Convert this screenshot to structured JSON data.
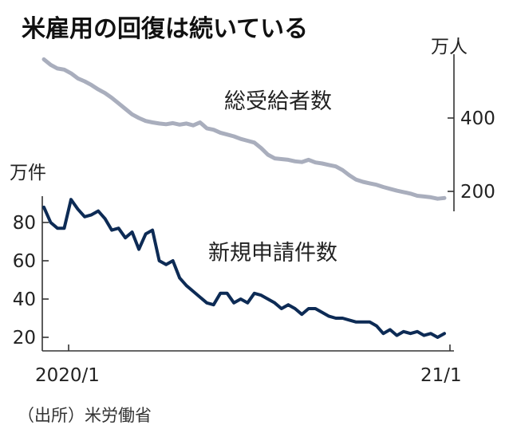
{
  "chart_data": {
    "type": "line",
    "title": "米雇用の回復は続いている",
    "source": "（出所）米労働省",
    "x_start_label": "2020/1",
    "x_end_label": "21/1",
    "series": [
      {
        "name": "総受給者数",
        "axis": "right",
        "unit": "万人",
        "color": "#a9aebd",
        "values": [
          560,
          545,
          535,
          532,
          522,
          508,
          500,
          490,
          478,
          468,
          455,
          440,
          425,
          410,
          400,
          392,
          388,
          385,
          383,
          386,
          382,
          385,
          380,
          388,
          372,
          368,
          360,
          355,
          350,
          343,
          338,
          333,
          318,
          300,
          290,
          288,
          286,
          282,
          280,
          286,
          279,
          276,
          272,
          268,
          258,
          244,
          232,
          226,
          222,
          218,
          212,
          207,
          202,
          198,
          194,
          188,
          186,
          184,
          180,
          182
        ]
      },
      {
        "name": "新規申請件数",
        "axis": "left",
        "unit": "万件",
        "color": "#0d2b55",
        "values": [
          88,
          80,
          77,
          77,
          92,
          87,
          83,
          84,
          86,
          82,
          76,
          77,
          72,
          75,
          66,
          74,
          76,
          60,
          58,
          60,
          51,
          47,
          44,
          41,
          38,
          37,
          43,
          43,
          38,
          40,
          38,
          43,
          42,
          40,
          38,
          35,
          37,
          35,
          32,
          35,
          35,
          33,
          31,
          30,
          30,
          29,
          28,
          28,
          28,
          26,
          22,
          24,
          21,
          23,
          22,
          23,
          21,
          22,
          20,
          22
        ]
      }
    ],
    "left_axis": {
      "unit": "万件",
      "ticks": [
        20,
        40,
        60,
        80
      ]
    },
    "right_axis": {
      "unit": "万人",
      "ticks": [
        200,
        400
      ]
    }
  }
}
